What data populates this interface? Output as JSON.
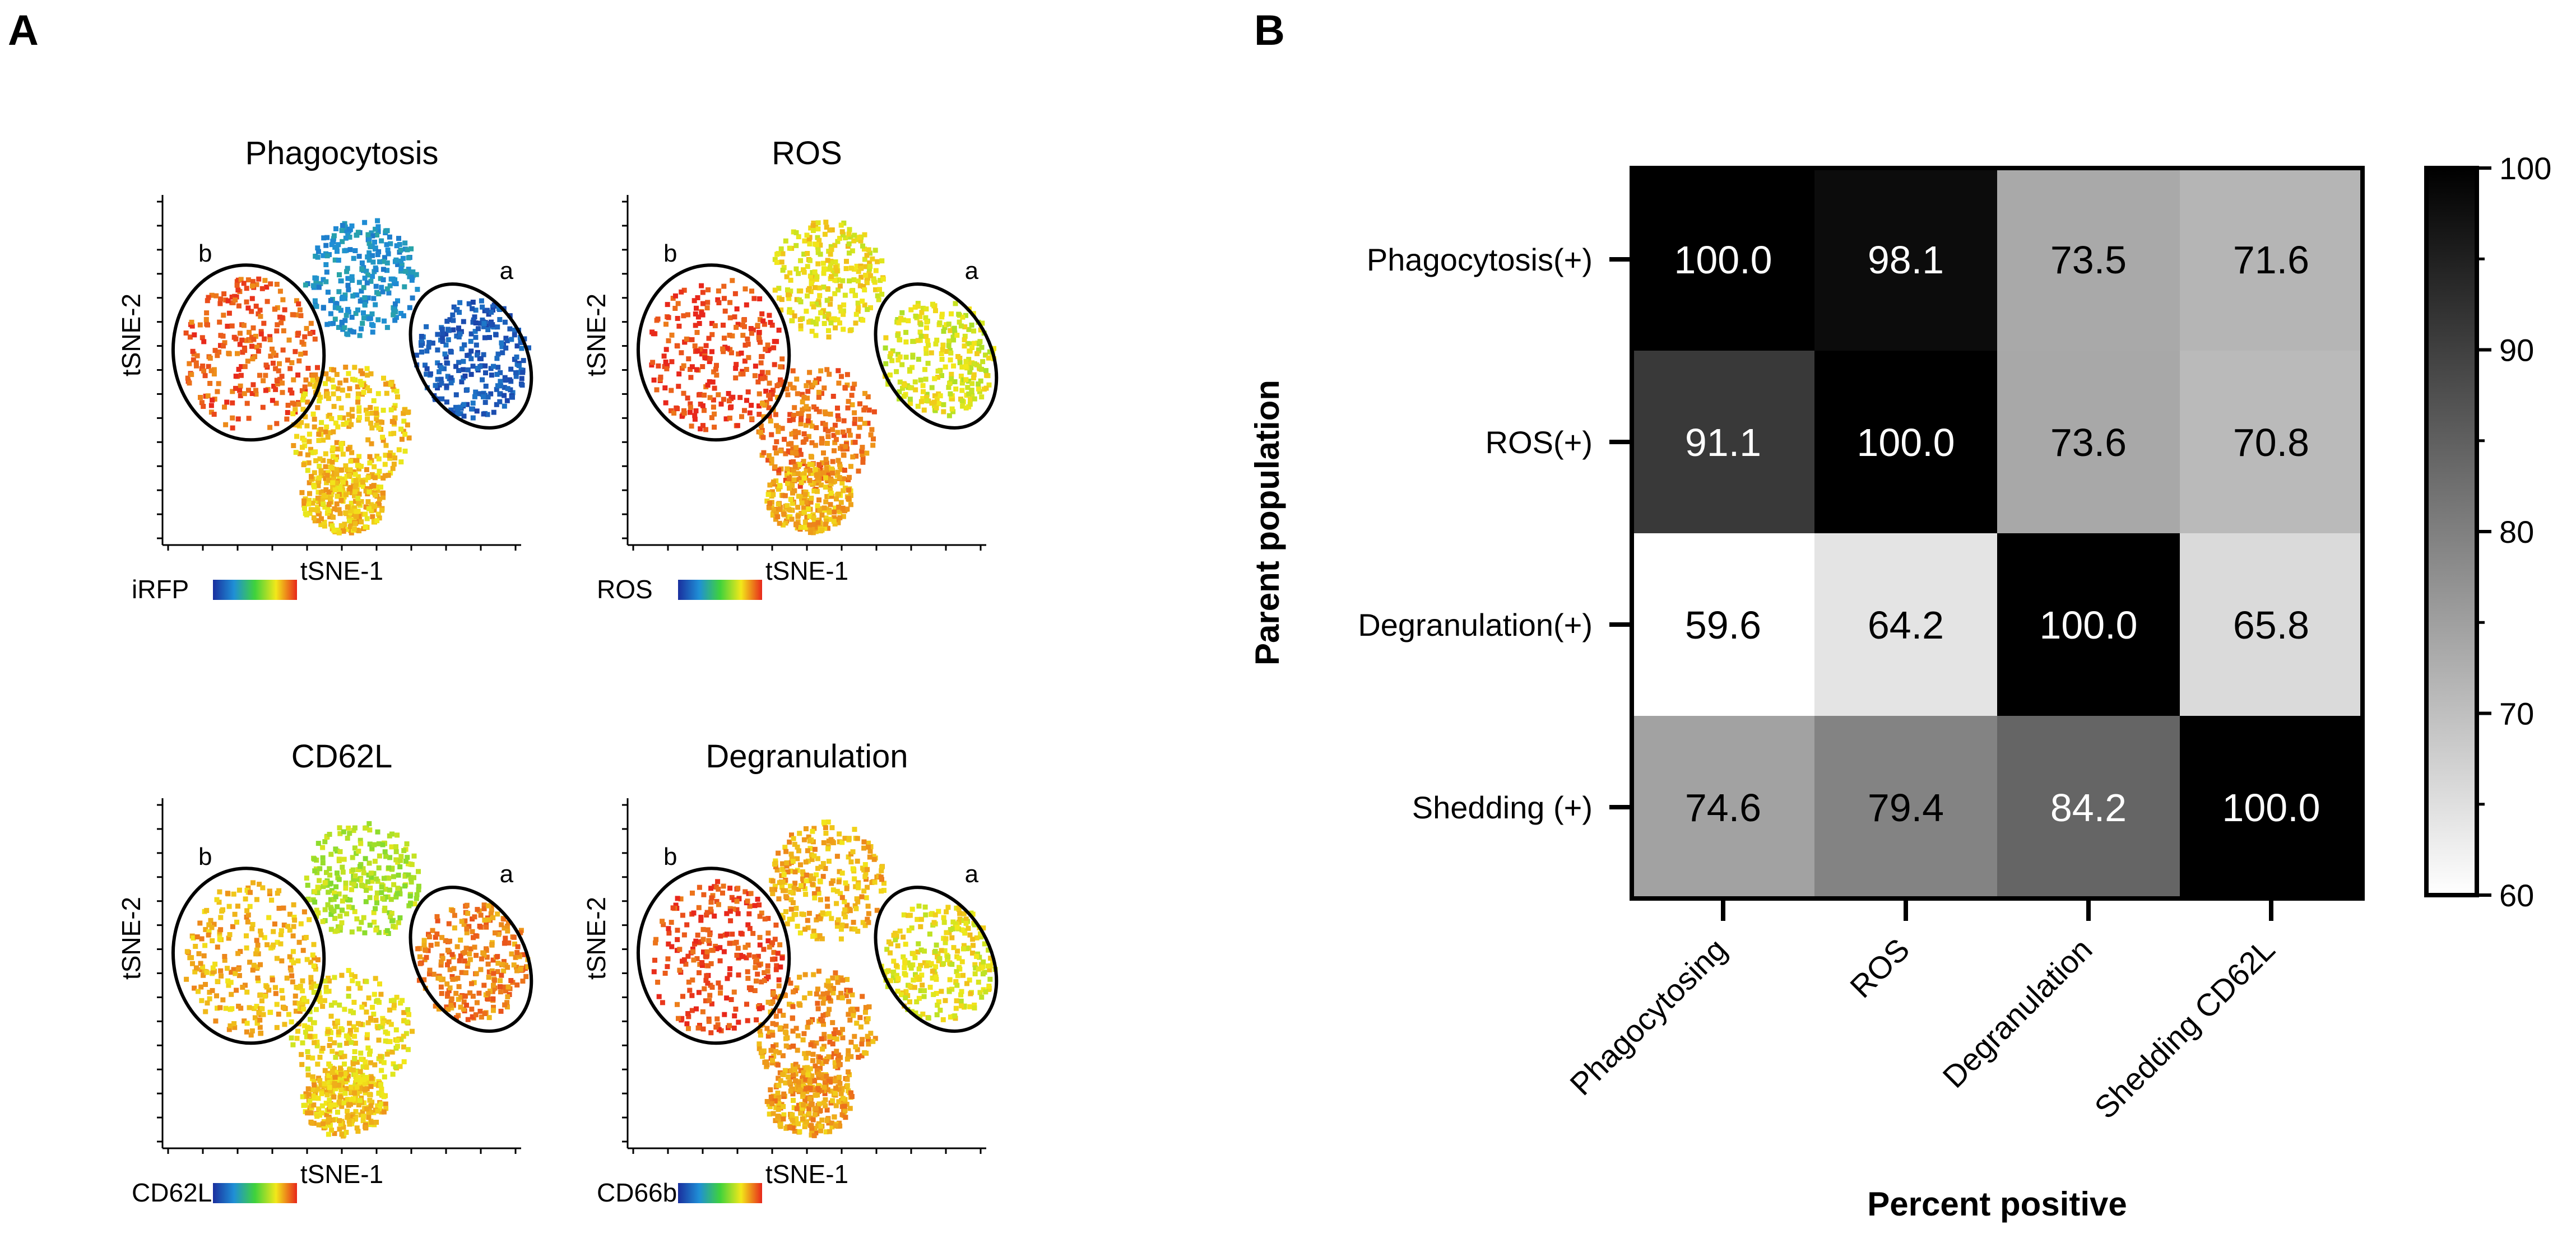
{
  "panels": {
    "a_label": "A",
    "b_label": "B"
  },
  "tsne_plots": [
    {
      "id": "phagocytosis",
      "title": "Phagocytosis",
      "xlabel": "tSNE-1",
      "ylabel": "tSNE-2",
      "legend_label": "iRFP",
      "cluster_a": "a",
      "cluster_b": "b"
    },
    {
      "id": "ros",
      "title": "ROS",
      "xlabel": "tSNE-1",
      "ylabel": "tSNE-2",
      "legend_label": "ROS",
      "cluster_a": "a",
      "cluster_b": "b"
    },
    {
      "id": "cd62l",
      "title": "CD62L",
      "xlabel": "tSNE-1",
      "ylabel": "tSNE-2",
      "legend_label": "CD62L",
      "cluster_a": "a",
      "cluster_b": "b"
    },
    {
      "id": "degranulation",
      "title": "Degranulation",
      "xlabel": "tSNE-1",
      "ylabel": "tSNE-2",
      "legend_label": "CD66b",
      "cluster_a": "a",
      "cluster_b": "b"
    }
  ],
  "chart_data": {
    "type": "heatmap",
    "xlabel": "Percent positive",
    "ylabel": "Parent population",
    "columns": [
      "Phagocytosing",
      "ROS",
      "Degranulation",
      "Shedding CD62L"
    ],
    "rows": [
      "Phagocytosis(+)",
      "ROS(+)",
      "Degranulation(+)",
      "Shedding (+)"
    ],
    "values": [
      [
        "100.0",
        "98.1",
        "73.5",
        "71.6"
      ],
      [
        "91.1",
        "100.0",
        "73.6",
        "70.8"
      ],
      [
        "59.6",
        "64.2",
        "100.0",
        "65.8"
      ],
      [
        "74.6",
        "79.4",
        "84.2",
        "100.0"
      ]
    ],
    "colorbar": {
      "min": 60,
      "max": 100,
      "ticks": [
        "60",
        "70",
        "80",
        "90",
        "100"
      ],
      "colormap": "white-to-black"
    }
  }
}
